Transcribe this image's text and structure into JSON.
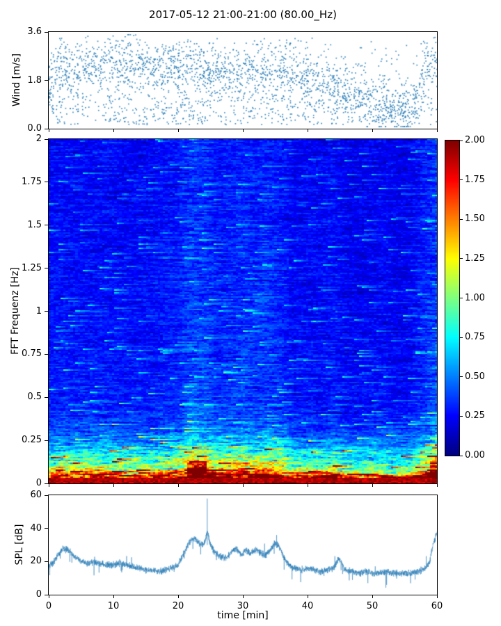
{
  "title": "2017-05-12 21:00-21:00 (80.00_Hz)",
  "xlabel": "time [min]",
  "x_ticks": [
    0,
    10,
    20,
    30,
    40,
    50,
    60
  ],
  "x_tick_labels": [
    "0",
    "10",
    "20",
    "30",
    "40",
    "50",
    "60"
  ],
  "chart_data": [
    {
      "type": "scatter",
      "name": "wind-speed",
      "ylabel": "Wind [m/s]",
      "ylim": [
        0,
        3.6
      ],
      "yticks": [
        0,
        1.8,
        3.6
      ],
      "ytick_labels": [
        "0.0",
        "1.8",
        "3.6"
      ],
      "xlim": [
        0,
        60
      ],
      "marker_color": "#1f77b4",
      "n_points": 2600,
      "seed": 7,
      "spread": 1.0,
      "mean_t": [
        0,
        2,
        4,
        7,
        10,
        13,
        16,
        19,
        22,
        25,
        28,
        31,
        34,
        37,
        40,
        43,
        46,
        49,
        52,
        55,
        57,
        58.5,
        60
      ],
      "mean_v": [
        1.8,
        2.3,
        2.2,
        2.4,
        2.3,
        2.4,
        2.2,
        2.4,
        2.3,
        2.1,
        2.2,
        2.0,
        2.3,
        2.2,
        1.9,
        1.7,
        1.3,
        1.0,
        0.8,
        0.7,
        1.2,
        2.3,
        2.5
      ]
    },
    {
      "type": "heatmap",
      "name": "fft-spectrogram",
      "ylabel": "FFT Frequenz [Hz]",
      "ylim": [
        0,
        2
      ],
      "yticks": [
        0,
        0.25,
        0.5,
        0.75,
        1,
        1.25,
        1.5,
        1.75,
        2
      ],
      "ytick_labels": [
        "0",
        "0.25",
        "0.5",
        "0.75",
        "1",
        "1.25",
        "1.5",
        "1.75",
        "2"
      ],
      "xlim": [
        0,
        60
      ],
      "clim": [
        0,
        2
      ],
      "colormap": "jet",
      "colorbar_ticks": [
        0,
        0.25,
        0.5,
        0.75,
        1,
        1.25,
        1.5,
        1.75,
        2
      ],
      "colorbar_tick_labels": [
        "0.00",
        "0.25",
        "0.50",
        "0.75",
        "1.00",
        "1.25",
        "1.50",
        "1.75",
        "2.00"
      ],
      "rows": 248,
      "cols": 160,
      "seed": 11,
      "freq_profile_f": [
        0,
        0.02,
        0.04,
        0.07,
        0.1,
        0.14,
        0.18,
        0.22,
        0.28,
        0.35,
        0.5,
        0.8,
        1.2,
        1.6,
        2.0
      ],
      "freq_profile_v": [
        2.0,
        1.95,
        1.6,
        1.15,
        0.95,
        0.8,
        0.7,
        0.55,
        0.42,
        0.33,
        0.28,
        0.26,
        0.25,
        0.24,
        0.23
      ],
      "time_intensity_t": [
        0,
        4,
        8,
        12,
        16,
        20,
        22,
        24,
        26,
        28,
        30,
        32,
        34,
        36,
        38,
        40,
        42,
        44,
        46,
        48,
        50,
        52,
        54,
        56,
        58,
        60
      ],
      "time_intensity_v": [
        1.05,
        0.95,
        1.0,
        0.9,
        0.95,
        1.1,
        1.35,
        1.3,
        1.1,
        1.15,
        1.2,
        1.15,
        1.25,
        1.1,
        0.9,
        0.95,
        0.9,
        1.0,
        0.85,
        0.8,
        0.85,
        0.9,
        0.8,
        0.85,
        1.1,
        1.35
      ]
    },
    {
      "type": "line",
      "name": "spl",
      "ylabel": "SPL [dB]",
      "ylim": [
        0,
        60
      ],
      "yticks": [
        0,
        20,
        40,
        60
      ],
      "ytick_labels": [
        "0",
        "20",
        "40",
        "60"
      ],
      "xlim": [
        0,
        60
      ],
      "line_color": "#1f77b4",
      "noise": 5,
      "seed": 3,
      "spike": {
        "t": 24.5,
        "v": 58
      },
      "base_t": [
        0,
        0.8,
        1.5,
        2.2,
        3,
        4,
        5,
        6,
        7,
        8,
        9,
        10,
        11,
        12,
        13,
        14,
        15,
        16,
        17,
        18,
        19,
        20,
        20.8,
        21.5,
        22,
        22.6,
        23.2,
        24,
        24.5,
        25,
        25.6,
        26.5,
        27.5,
        28.3,
        29,
        29.8,
        30.5,
        31.2,
        32,
        32.8,
        33.5,
        34.3,
        35,
        35.6,
        36.3,
        37,
        38,
        39,
        40,
        41,
        42,
        43,
        44,
        44.8,
        45.2,
        45.8,
        47,
        48,
        49,
        50,
        51,
        52,
        53,
        54,
        55,
        56,
        57,
        58,
        58.8,
        59.4,
        60
      ],
      "base_v": [
        17,
        20,
        24,
        28,
        27,
        23,
        20,
        19,
        20,
        19,
        18,
        18,
        19,
        18,
        17,
        16,
        15,
        15,
        14,
        15,
        16,
        18,
        24,
        30,
        33,
        34,
        31,
        30,
        38,
        30,
        26,
        23,
        22,
        26,
        28,
        24,
        27,
        25,
        27,
        25,
        24,
        27,
        31,
        29,
        23,
        18,
        16,
        15,
        16,
        15,
        14,
        15,
        16,
        22,
        19,
        15,
        14,
        13,
        14,
        13,
        13,
        14,
        13,
        13,
        13,
        13,
        14,
        15,
        19,
        30,
        38
      ]
    }
  ]
}
